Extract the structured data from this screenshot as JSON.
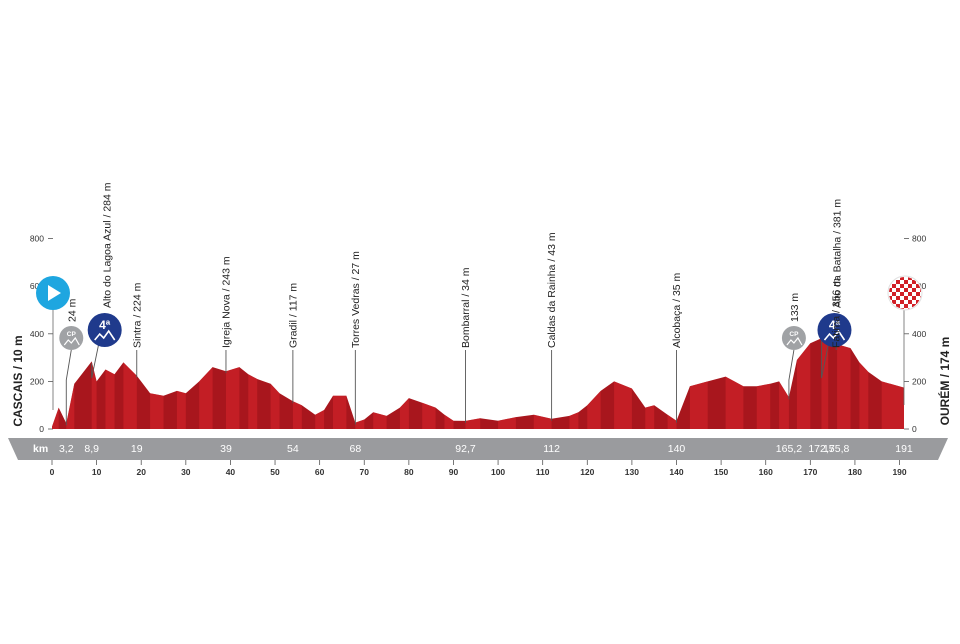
{
  "chart_data": {
    "type": "area",
    "title": "",
    "xlabel": "",
    "ylabel": "",
    "xlim": [
      0,
      191
    ],
    "ylim": [
      0,
      900
    ],
    "x_ticks": [
      0,
      10,
      20,
      30,
      40,
      50,
      60,
      70,
      80,
      90,
      100,
      110,
      120,
      130,
      140,
      150,
      160,
      170,
      180,
      190
    ],
    "y_ticks": [
      0,
      200,
      400,
      600,
      800
    ],
    "km_unit": "km",
    "start_label": "CASCAIS / 10 m",
    "finish_label": "OURÉM / 174 m",
    "profile": {
      "x": [
        0,
        1.5,
        3.2,
        5,
        8.9,
        10,
        12,
        14,
        16,
        19,
        22,
        25,
        28,
        30,
        33,
        36,
        39,
        42,
        44,
        46,
        49,
        51,
        54,
        56,
        59,
        61,
        63,
        66,
        68,
        70,
        72,
        75,
        78,
        80,
        83,
        86,
        88,
        90,
        92.7,
        96,
        100,
        104,
        108,
        112,
        116,
        118,
        120,
        123,
        126,
        130,
        133,
        135,
        138,
        140,
        143,
        147,
        151,
        155,
        158,
        161,
        163,
        165.2,
        167,
        170,
        172.5,
        174,
        176,
        179,
        181,
        183,
        186,
        191
      ],
      "y": [
        10,
        90,
        24,
        190,
        284,
        200,
        250,
        230,
        280,
        224,
        150,
        140,
        160,
        150,
        200,
        260,
        243,
        260,
        230,
        210,
        190,
        150,
        117,
        100,
        60,
        80,
        140,
        140,
        27,
        40,
        70,
        55,
        90,
        130,
        110,
        90,
        60,
        35,
        34,
        45,
        35,
        50,
        60,
        43,
        55,
        70,
        100,
        160,
        200,
        170,
        90,
        100,
        60,
        35,
        180,
        200,
        220,
        180,
        180,
        190,
        200,
        133,
        290,
        360,
        381,
        360,
        356,
        340,
        280,
        240,
        200,
        174
      ]
    },
    "waypoints": [
      {
        "km": 3.2,
        "km_label": "3,2",
        "label": "24 m",
        "elev": 24,
        "type": "sprint",
        "badge": "CP"
      },
      {
        "km": 8.9,
        "km_label": "8,9",
        "label": "Alto do Lagoa Azul / 284 m",
        "elev": 284,
        "type": "climb",
        "badge": "4ª"
      },
      {
        "km": 19,
        "km_label": "19",
        "label": "Sintra / 224 m",
        "elev": 224,
        "type": "town"
      },
      {
        "km": 39,
        "km_label": "39",
        "label": "Igreja Nova / 243 m",
        "elev": 243,
        "type": "town"
      },
      {
        "km": 54,
        "km_label": "54",
        "label": "Gradil / 117 m",
        "elev": 117,
        "type": "town"
      },
      {
        "km": 68,
        "km_label": "68",
        "label": "Torres Vedras / 27 m",
        "elev": 27,
        "type": "town"
      },
      {
        "km": 92.7,
        "km_label": "92,7",
        "label": "Bombarral / 34 m",
        "elev": 34,
        "type": "town"
      },
      {
        "km": 112,
        "km_label": "112",
        "label": "Caldas da Rainha / 43 m",
        "elev": 43,
        "type": "town"
      },
      {
        "km": 140,
        "km_label": "140",
        "label": "Alcobaça / 35 m",
        "elev": 35,
        "type": "town"
      },
      {
        "km": 165.2,
        "km_label": "165,2",
        "label": "133 m",
        "elev": 133,
        "type": "sprint",
        "badge": "CP"
      },
      {
        "km": 172.5,
        "km_label": "172,5",
        "label": "Alto da Batalha / 381 m",
        "elev": 381,
        "type": "climb",
        "badge": "4ª"
      },
      {
        "km": 175.8,
        "km_label": "175,8",
        "label": "Fatima / 356 m",
        "elev": 356,
        "type": "town"
      },
      {
        "km": 191,
        "km_label": "191",
        "label": "",
        "elev": 174,
        "type": "finish"
      }
    ],
    "colors": {
      "profile_dark": "#a8161d",
      "profile_light": "#d8262c",
      "band": "#9a9b9e",
      "start_icon": "#1ea6e0",
      "climb_badge": "#1f3a8c",
      "sprint_badge": "#a0a2a5",
      "finish_check": "#d11f26"
    }
  }
}
